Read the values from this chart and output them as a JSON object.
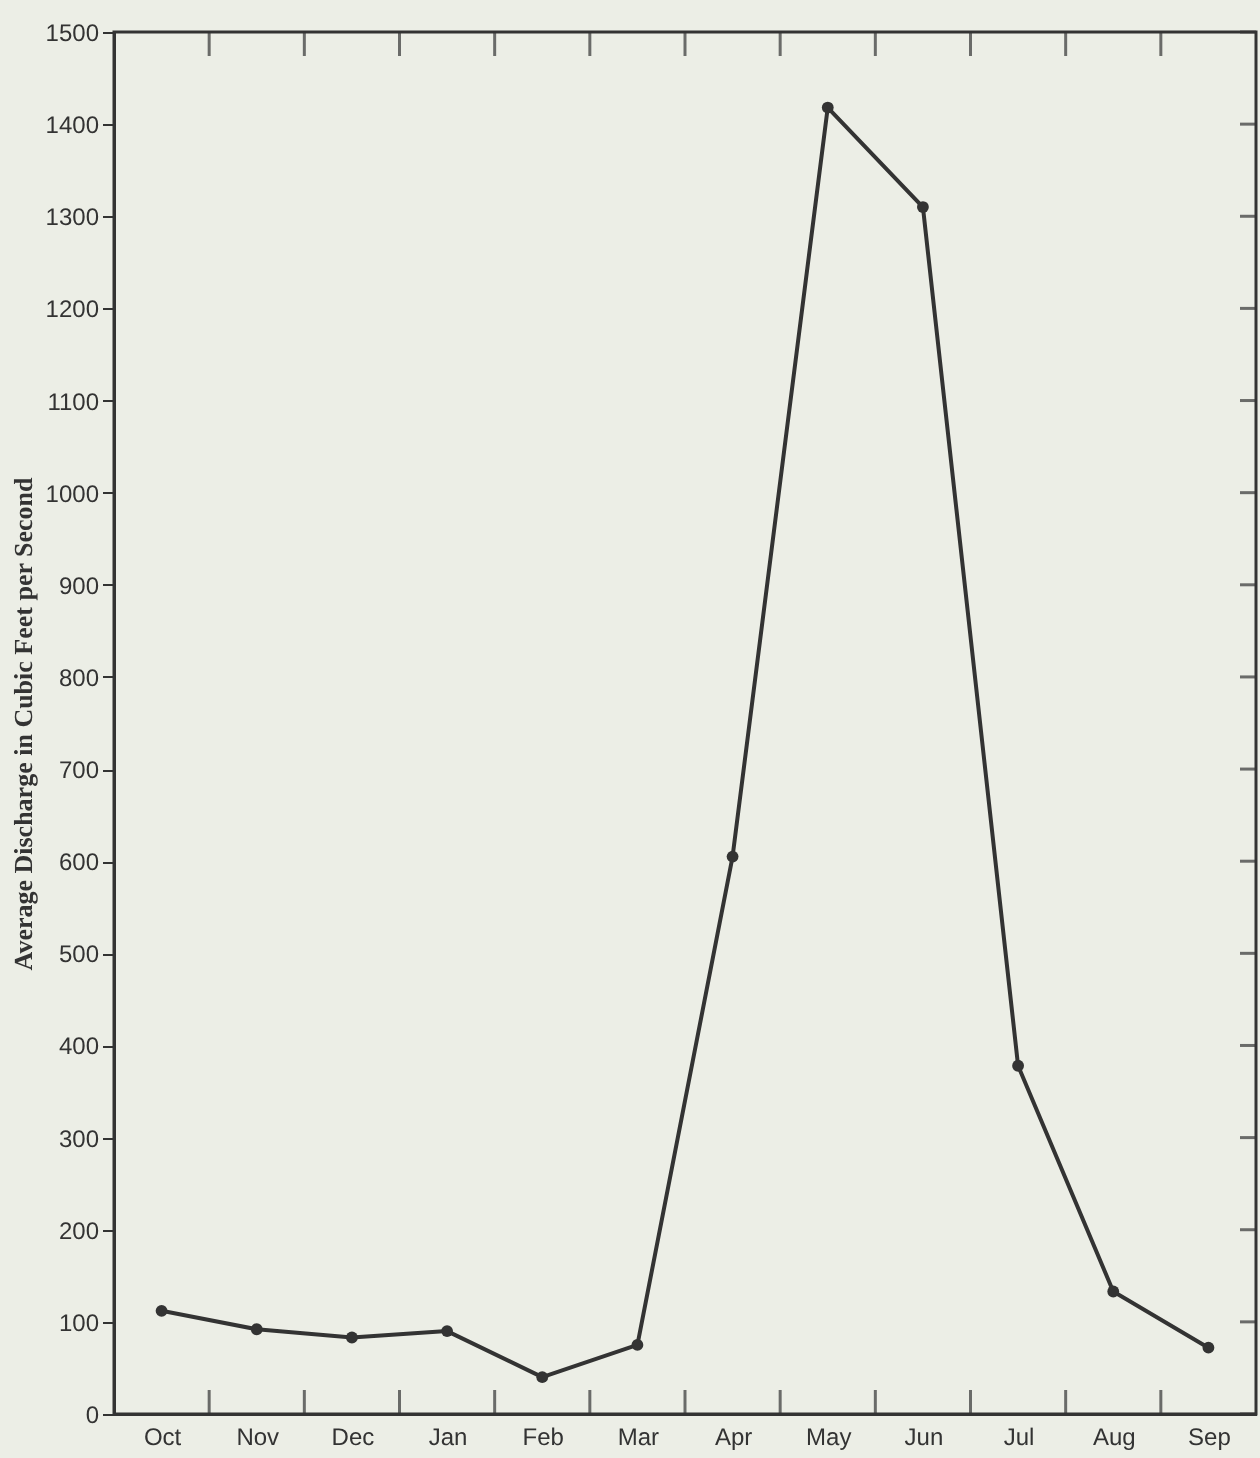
{
  "chart_data": {
    "type": "line",
    "ylabel": "Average Discharge in Cubic Feet per Second",
    "categories": [
      "Oct",
      "Nov",
      "Dec",
      "Jan",
      "Feb",
      "Mar",
      "Apr",
      "May",
      "Jun",
      "Jul",
      "Aug",
      "Sep"
    ],
    "series": [
      {
        "color": "#333333",
        "values": [
          112,
          92,
          83,
          90,
          40,
          75,
          605,
          1418,
          1310,
          378,
          133,
          72
        ]
      }
    ],
    "ylim": [
      0,
      1500
    ],
    "yticks": [
      0,
      100,
      200,
      300,
      400,
      500,
      600,
      700,
      800,
      900,
      1000,
      1100,
      1200,
      1300,
      1400,
      1500
    ],
    "marker": "circle",
    "line_style": "solid",
    "grid": false,
    "legend": false
  }
}
